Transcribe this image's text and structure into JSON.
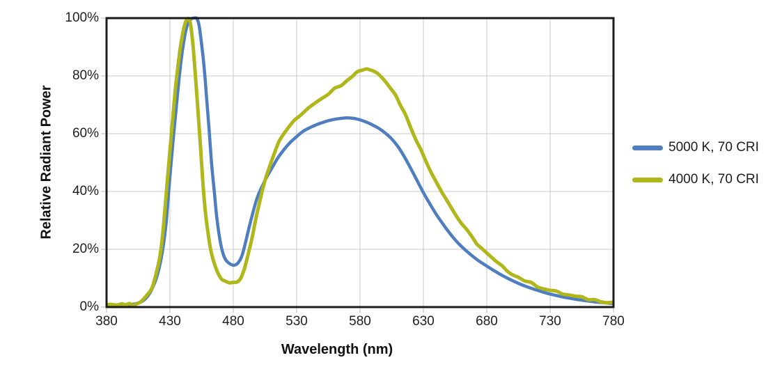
{
  "figure": {
    "background": "#ffffff"
  },
  "colors": {
    "plot_border": "#1a1a1a",
    "gridline": "#c9c9c9",
    "tick_mark": "#b3b3b3",
    "text": "#1f1f1f",
    "series_blue": "#4E7EC0",
    "series_olive": "#AFB71B"
  },
  "legend": {
    "position": "right"
  },
  "chart_data": {
    "type": "line",
    "title": "",
    "xlabel": "Wavelength (nm)",
    "ylabel": "Relative Radiant Power",
    "xlim": [
      380,
      780
    ],
    "ylim": [
      0,
      100
    ],
    "x_ticks": [
      380,
      430,
      480,
      530,
      580,
      630,
      680,
      730,
      780
    ],
    "y_ticks": [
      0,
      20,
      40,
      60,
      80,
      100
    ],
    "y_tick_suffix": "%",
    "grid": true,
    "legend_position": "right",
    "series": [
      {
        "name": "5000 K, 70 CRI",
        "color": "#4E7EC0",
        "stroke_width": 4.5,
        "noisy": false,
        "points": [
          [
            380,
            0.4
          ],
          [
            385,
            0.4
          ],
          [
            390,
            0.5
          ],
          [
            395,
            0.6
          ],
          [
            400,
            0.9
          ],
          [
            405,
            1.4
          ],
          [
            410,
            2.6
          ],
          [
            415,
            5.5
          ],
          [
            420,
            11
          ],
          [
            424,
            19
          ],
          [
            427,
            29
          ],
          [
            429,
            40
          ],
          [
            431,
            50
          ],
          [
            433,
            60
          ],
          [
            435,
            69
          ],
          [
            437,
            78
          ],
          [
            439,
            86
          ],
          [
            441,
            92
          ],
          [
            443,
            96.5
          ],
          [
            445,
            98.8
          ],
          [
            447,
            99.8
          ],
          [
            449,
            100
          ],
          [
            451,
            100
          ],
          [
            453,
            97.5
          ],
          [
            455,
            91
          ],
          [
            457,
            83
          ],
          [
            459,
            72
          ],
          [
            461,
            61
          ],
          [
            463,
            49
          ],
          [
            465,
            40
          ],
          [
            467,
            31
          ],
          [
            469,
            24.5
          ],
          [
            471,
            20
          ],
          [
            473,
            17.2
          ],
          [
            475,
            15.8
          ],
          [
            478,
            14.8
          ],
          [
            481,
            14.5
          ],
          [
            484,
            15.4
          ],
          [
            487,
            18
          ],
          [
            490,
            23
          ],
          [
            493,
            28.5
          ],
          [
            496,
            33.5
          ],
          [
            499,
            38
          ],
          [
            503,
            42
          ],
          [
            507,
            45.5
          ],
          [
            511,
            48.5
          ],
          [
            515,
            51.5
          ],
          [
            520,
            54.5
          ],
          [
            525,
            57
          ],
          [
            530,
            59
          ],
          [
            535,
            60.8
          ],
          [
            540,
            62
          ],
          [
            545,
            63
          ],
          [
            550,
            63.8
          ],
          [
            555,
            64.5
          ],
          [
            560,
            65
          ],
          [
            565,
            65.3
          ],
          [
            570,
            65.5
          ],
          [
            575,
            65.3
          ],
          [
            580,
            64.8
          ],
          [
            585,
            64
          ],
          [
            590,
            63
          ],
          [
            595,
            61.8
          ],
          [
            600,
            60.2
          ],
          [
            605,
            58.2
          ],
          [
            610,
            55.5
          ],
          [
            615,
            52
          ],
          [
            620,
            48
          ],
          [
            625,
            43.8
          ],
          [
            630,
            39.6
          ],
          [
            635,
            35.8
          ],
          [
            640,
            32.2
          ],
          [
            645,
            29
          ],
          [
            650,
            26
          ],
          [
            655,
            23.3
          ],
          [
            660,
            21
          ],
          [
            665,
            19
          ],
          [
            670,
            17.2
          ],
          [
            675,
            15.6
          ],
          [
            680,
            14.2
          ],
          [
            685,
            12.8
          ],
          [
            690,
            11.5
          ],
          [
            695,
            10.3
          ],
          [
            700,
            9.2
          ],
          [
            705,
            8.2
          ],
          [
            710,
            7.3
          ],
          [
            715,
            6.5
          ],
          [
            720,
            5.8
          ],
          [
            725,
            5.1
          ],
          [
            730,
            4.5
          ],
          [
            735,
            4
          ],
          [
            740,
            3.5
          ],
          [
            745,
            3.1
          ],
          [
            750,
            2.7
          ],
          [
            755,
            2.4
          ],
          [
            760,
            2.1
          ],
          [
            765,
            1.8
          ],
          [
            770,
            1.6
          ],
          [
            775,
            1.4
          ],
          [
            780,
            1.2
          ]
        ]
      },
      {
        "name": "4000 K, 70 CRI",
        "color": "#AFB71B",
        "stroke_width": 5,
        "noisy": true,
        "points": [
          [
            380,
            1.2
          ],
          [
            383,
            0.6
          ],
          [
            386,
            1.1
          ],
          [
            389,
            0.7
          ],
          [
            392,
            1.2
          ],
          [
            395,
            0.8
          ],
          [
            398,
            1.1
          ],
          [
            401,
            0.9
          ],
          [
            404,
            1.3
          ],
          [
            407,
            1.8
          ],
          [
            410,
            2.8
          ],
          [
            413,
            4.5
          ],
          [
            416,
            7
          ],
          [
            419,
            11
          ],
          [
            422,
            17
          ],
          [
            424,
            24
          ],
          [
            426,
            33
          ],
          [
            428,
            44
          ],
          [
            430,
            54
          ],
          [
            432,
            64
          ],
          [
            434,
            74
          ],
          [
            436,
            82
          ],
          [
            438,
            89
          ],
          [
            440,
            94.5
          ],
          [
            442,
            98.5
          ],
          [
            444,
            100
          ],
          [
            446,
            98.5
          ],
          [
            448,
            92
          ],
          [
            450,
            81
          ],
          [
            452,
            69
          ],
          [
            454,
            56
          ],
          [
            456,
            43
          ],
          [
            458,
            33
          ],
          [
            460,
            26
          ],
          [
            462,
            20.5
          ],
          [
            464,
            16.5
          ],
          [
            466,
            13.5
          ],
          [
            468,
            11.3
          ],
          [
            471,
            9.6
          ],
          [
            474,
            8.7
          ],
          [
            477,
            8.3
          ],
          [
            480,
            8.2
          ],
          [
            483,
            8.7
          ],
          [
            486,
            10.3
          ],
          [
            489,
            13.5
          ],
          [
            492,
            18.5
          ],
          [
            495,
            24.5
          ],
          [
            498,
            31
          ],
          [
            501,
            37
          ],
          [
            504,
            42.5
          ],
          [
            508,
            48
          ],
          [
            512,
            53
          ],
          [
            516,
            57
          ],
          [
            520,
            60
          ],
          [
            524,
            62.5
          ],
          [
            528,
            64.3
          ],
          [
            532,
            66
          ],
          [
            536,
            67.8
          ],
          [
            540,
            69.3
          ],
          [
            545,
            71
          ],
          [
            550,
            72.5
          ],
          [
            555,
            74
          ],
          [
            560,
            75.5
          ],
          [
            565,
            77
          ],
          [
            570,
            78.8
          ],
          [
            574,
            80.2
          ],
          [
            578,
            81.4
          ],
          [
            582,
            82.2
          ],
          [
            585,
            82.5
          ],
          [
            588,
            82.2
          ],
          [
            591,
            81.7
          ],
          [
            594,
            80.8
          ],
          [
            597,
            79.8
          ],
          [
            600,
            78.4
          ],
          [
            604,
            76
          ],
          [
            608,
            73.3
          ],
          [
            612,
            70
          ],
          [
            616,
            66.3
          ],
          [
            620,
            62.3
          ],
          [
            624,
            58.3
          ],
          [
            628,
            54.3
          ],
          [
            632,
            50.5
          ],
          [
            636,
            47
          ],
          [
            640,
            43.6
          ],
          [
            644,
            40.5
          ],
          [
            648,
            37.4
          ],
          [
            652,
            34.4
          ],
          [
            656,
            31.6
          ],
          [
            660,
            29
          ],
          [
            664,
            26.6
          ],
          [
            668,
            24.3
          ],
          [
            672,
            22.2
          ],
          [
            676,
            20.3
          ],
          [
            680,
            18.5
          ],
          [
            684,
            16.9
          ],
          [
            688,
            15.4
          ],
          [
            692,
            14
          ],
          [
            696,
            12.8
          ],
          [
            700,
            11.6
          ],
          [
            705,
            10.3
          ],
          [
            710,
            9.2
          ],
          [
            715,
            8.2
          ],
          [
            720,
            7.3
          ],
          [
            725,
            6.5
          ],
          [
            730,
            5.8
          ],
          [
            735,
            5.2
          ],
          [
            740,
            4.6
          ],
          [
            745,
            4.1
          ],
          [
            750,
            3.6
          ],
          [
            755,
            3.2
          ],
          [
            760,
            2.8
          ],
          [
            765,
            2.5
          ],
          [
            770,
            2.2
          ],
          [
            775,
            1.9
          ],
          [
            780,
            1.7
          ]
        ]
      }
    ]
  }
}
